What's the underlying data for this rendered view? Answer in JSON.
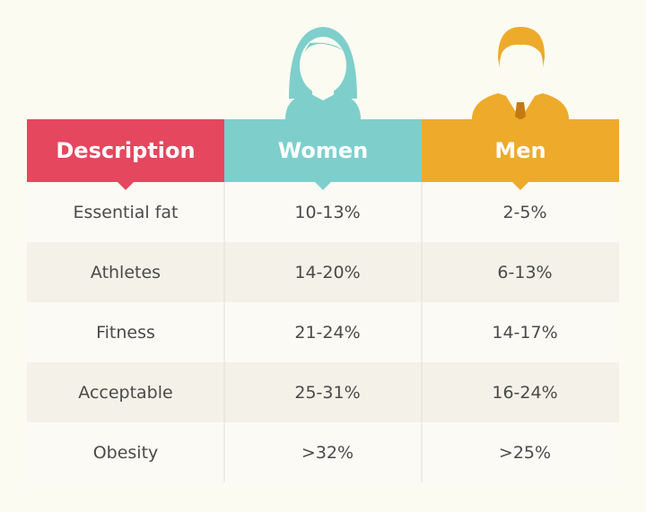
{
  "table": {
    "headers": [
      "Description",
      "Women",
      "Men"
    ],
    "rows": [
      [
        "Essential fat",
        "10-13%",
        "2-5%"
      ],
      [
        "Athletes",
        "14-20%",
        "6-13%"
      ],
      [
        "Fitness",
        "21-24%",
        "14-17%"
      ],
      [
        "Acceptable",
        "25-31%",
        "16-24%"
      ],
      [
        "Obesity",
        ">32%",
        ">25%"
      ]
    ]
  }
}
